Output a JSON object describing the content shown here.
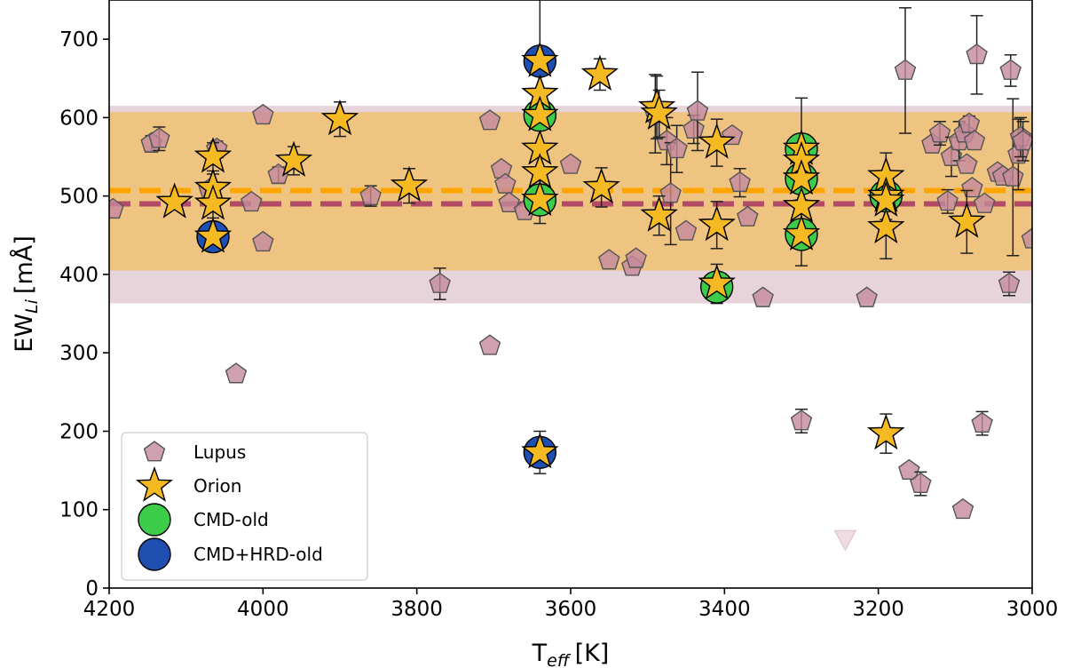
{
  "chart_data": {
    "type": "scatter",
    "xlabel": "T",
    "xlabel_sub": "eff",
    "xlabel_unit": "[K]",
    "ylabel": "EW",
    "ylabel_sub": "Li",
    "ylabel_unit": "[mÅ]",
    "xlim": [
      4200,
      3000
    ],
    "ylim": [
      0,
      750
    ],
    "x_ticks": [
      4200,
      4000,
      3800,
      3600,
      3400,
      3200,
      3000
    ],
    "y_ticks": [
      0,
      100,
      200,
      300,
      400,
      500,
      600,
      700
    ],
    "bands": [
      {
        "name": "Lupus range",
        "y0": 363,
        "y1": 615,
        "color": "#c9a0b0",
        "opacity": 0.45
      },
      {
        "name": "Orion range",
        "y0": 405,
        "y1": 607,
        "color": "#f0c070",
        "opacity": 0.85
      }
    ],
    "mean_lines": [
      {
        "name": "Orion mean",
        "y": 507,
        "color": "#ffa500"
      },
      {
        "name": "Lupus mean",
        "y": 490,
        "color": "#b04a66"
      }
    ],
    "series": [
      {
        "name": "Lupus",
        "marker": "pentagon",
        "color": "#c48a9e",
        "points": [
          {
            "x": 4195,
            "y": 483
          },
          {
            "x": 4145,
            "y": 567,
            "err": 10
          },
          {
            "x": 4135,
            "y": 573,
            "err": 15
          },
          {
            "x": 4070,
            "y": 508
          },
          {
            "x": 4060,
            "y": 560,
            "err": 10
          },
          {
            "x": 4035,
            "y": 273
          },
          {
            "x": 4015,
            "y": 492
          },
          {
            "x": 4000,
            "y": 441
          },
          {
            "x": 4000,
            "y": 603
          },
          {
            "x": 3980,
            "y": 527,
            "err": 10
          },
          {
            "x": 3860,
            "y": 500,
            "err": 13
          },
          {
            "x": 3770,
            "y": 388,
            "err": 20
          },
          {
            "x": 3705,
            "y": 309
          },
          {
            "x": 3705,
            "y": 596
          },
          {
            "x": 3690,
            "y": 534
          },
          {
            "x": 3685,
            "y": 515
          },
          {
            "x": 3680,
            "y": 491
          },
          {
            "x": 3660,
            "y": 481
          },
          {
            "x": 3600,
            "y": 540
          },
          {
            "x": 3550,
            "y": 418
          },
          {
            "x": 3520,
            "y": 410
          },
          {
            "x": 3515,
            "y": 420
          },
          {
            "x": 3490,
            "y": 605,
            "err": 50
          },
          {
            "x": 3475,
            "y": 570,
            "err": 30
          },
          {
            "x": 3470,
            "y": 503,
            "err": 65
          },
          {
            "x": 3462,
            "y": 560,
            "err": 30
          },
          {
            "x": 3450,
            "y": 455
          },
          {
            "x": 3440,
            "y": 585,
            "err": 18
          },
          {
            "x": 3435,
            "y": 608,
            "err": 50
          },
          {
            "x": 3390,
            "y": 577
          },
          {
            "x": 3380,
            "y": 517,
            "err": 18
          },
          {
            "x": 3370,
            "y": 473
          },
          {
            "x": 3350,
            "y": 370
          },
          {
            "x": 3300,
            "y": 213,
            "err": 15
          },
          {
            "x": 3215,
            "y": 370
          },
          {
            "x": 3165,
            "y": 660,
            "err": 80
          },
          {
            "x": 3160,
            "y": 150
          },
          {
            "x": 3145,
            "y": 133,
            "err": 15
          },
          {
            "x": 3130,
            "y": 566
          },
          {
            "x": 3120,
            "y": 580,
            "err": 15
          },
          {
            "x": 3110,
            "y": 493,
            "err": 15
          },
          {
            "x": 3105,
            "y": 550,
            "err": 25
          },
          {
            "x": 3095,
            "y": 570,
            "err": 25
          },
          {
            "x": 3090,
            "y": 100
          },
          {
            "x": 3088,
            "y": 580
          },
          {
            "x": 3085,
            "y": 540
          },
          {
            "x": 3082,
            "y": 592,
            "err": 10
          },
          {
            "x": 3078,
            "y": 510
          },
          {
            "x": 3075,
            "y": 570
          },
          {
            "x": 3072,
            "y": 680,
            "err": 50
          },
          {
            "x": 3065,
            "y": 210,
            "err": 15
          },
          {
            "x": 3062,
            "y": 490
          },
          {
            "x": 3045,
            "y": 530
          },
          {
            "x": 3038,
            "y": 525
          },
          {
            "x": 3030,
            "y": 388,
            "err": 15
          },
          {
            "x": 3028,
            "y": 660,
            "err": 20
          },
          {
            "x": 3025,
            "y": 524,
            "err": 100
          },
          {
            "x": 3018,
            "y": 553,
            "err": 45
          },
          {
            "x": 3015,
            "y": 575,
            "err": 25
          },
          {
            "x": 3012,
            "y": 570,
            "err": 25
          },
          {
            "x": 3000,
            "y": 445
          }
        ]
      },
      {
        "name": "Orion",
        "marker": "star",
        "color": "#f5b922",
        "points": [
          {
            "x": 4115,
            "y": 492
          },
          {
            "x": 4065,
            "y": 550,
            "err": 18
          },
          {
            "x": 4065,
            "y": 510,
            "err": 18
          },
          {
            "x": 4065,
            "y": 490,
            "err": 18
          },
          {
            "x": 4065,
            "y": 448
          },
          {
            "x": 3900,
            "y": 598,
            "err": 22
          },
          {
            "x": 3960,
            "y": 545,
            "err": 18
          },
          {
            "x": 3810,
            "y": 513,
            "err": 22
          },
          {
            "x": 3640,
            "y": 672,
            "err": 85
          },
          {
            "x": 3640,
            "y": 630
          },
          {
            "x": 3640,
            "y": 603
          },
          {
            "x": 3640,
            "y": 560
          },
          {
            "x": 3640,
            "y": 530
          },
          {
            "x": 3640,
            "y": 495,
            "err": 30
          },
          {
            "x": 3640,
            "y": 173,
            "err": 27
          },
          {
            "x": 3562,
            "y": 655,
            "err": 20
          },
          {
            "x": 3560,
            "y": 511,
            "err": 25
          },
          {
            "x": 3488,
            "y": 613,
            "err": 40
          },
          {
            "x": 3485,
            "y": 605,
            "err": 30
          },
          {
            "x": 3485,
            "y": 475,
            "err": 25
          },
          {
            "x": 3410,
            "y": 568,
            "err": 30
          },
          {
            "x": 3410,
            "y": 463,
            "err": 30
          },
          {
            "x": 3410,
            "y": 388,
            "err": 25
          },
          {
            "x": 3300,
            "y": 560,
            "err": 65
          },
          {
            "x": 3300,
            "y": 545
          },
          {
            "x": 3300,
            "y": 522
          },
          {
            "x": 3300,
            "y": 487
          },
          {
            "x": 3300,
            "y": 451,
            "err": 40
          },
          {
            "x": 3190,
            "y": 525,
            "err": 30
          },
          {
            "x": 3190,
            "y": 500,
            "err": 30
          },
          {
            "x": 3190,
            "y": 494
          },
          {
            "x": 3190,
            "y": 460,
            "err": 40
          },
          {
            "x": 3190,
            "y": 197,
            "err": 25
          },
          {
            "x": 3085,
            "y": 467,
            "err": 40
          }
        ]
      },
      {
        "name": "CMD-old",
        "marker": "circle",
        "color": "#3dcc4a",
        "points": [
          {
            "x": 3640,
            "y": 603
          },
          {
            "x": 3640,
            "y": 495
          },
          {
            "x": 3410,
            "y": 384
          },
          {
            "x": 3300,
            "y": 560
          },
          {
            "x": 3300,
            "y": 522
          },
          {
            "x": 3300,
            "y": 451
          },
          {
            "x": 3190,
            "y": 500
          }
        ]
      },
      {
        "name": "CMD+HRD-old",
        "marker": "circle",
        "color": "#1f4fb0",
        "points": [
          {
            "x": 4065,
            "y": 448
          },
          {
            "x": 3640,
            "y": 672
          },
          {
            "x": 3640,
            "y": 173
          }
        ]
      },
      {
        "name": "Lupus upper limit",
        "marker": "triangle-down",
        "color": "#f0dce2",
        "points": [
          {
            "x": 3243,
            "y": 62
          }
        ]
      }
    ],
    "legend": {
      "placement": "lower-left",
      "entries": [
        "Lupus",
        "Orion",
        "CMD-old",
        "CMD+HRD-old"
      ]
    }
  }
}
